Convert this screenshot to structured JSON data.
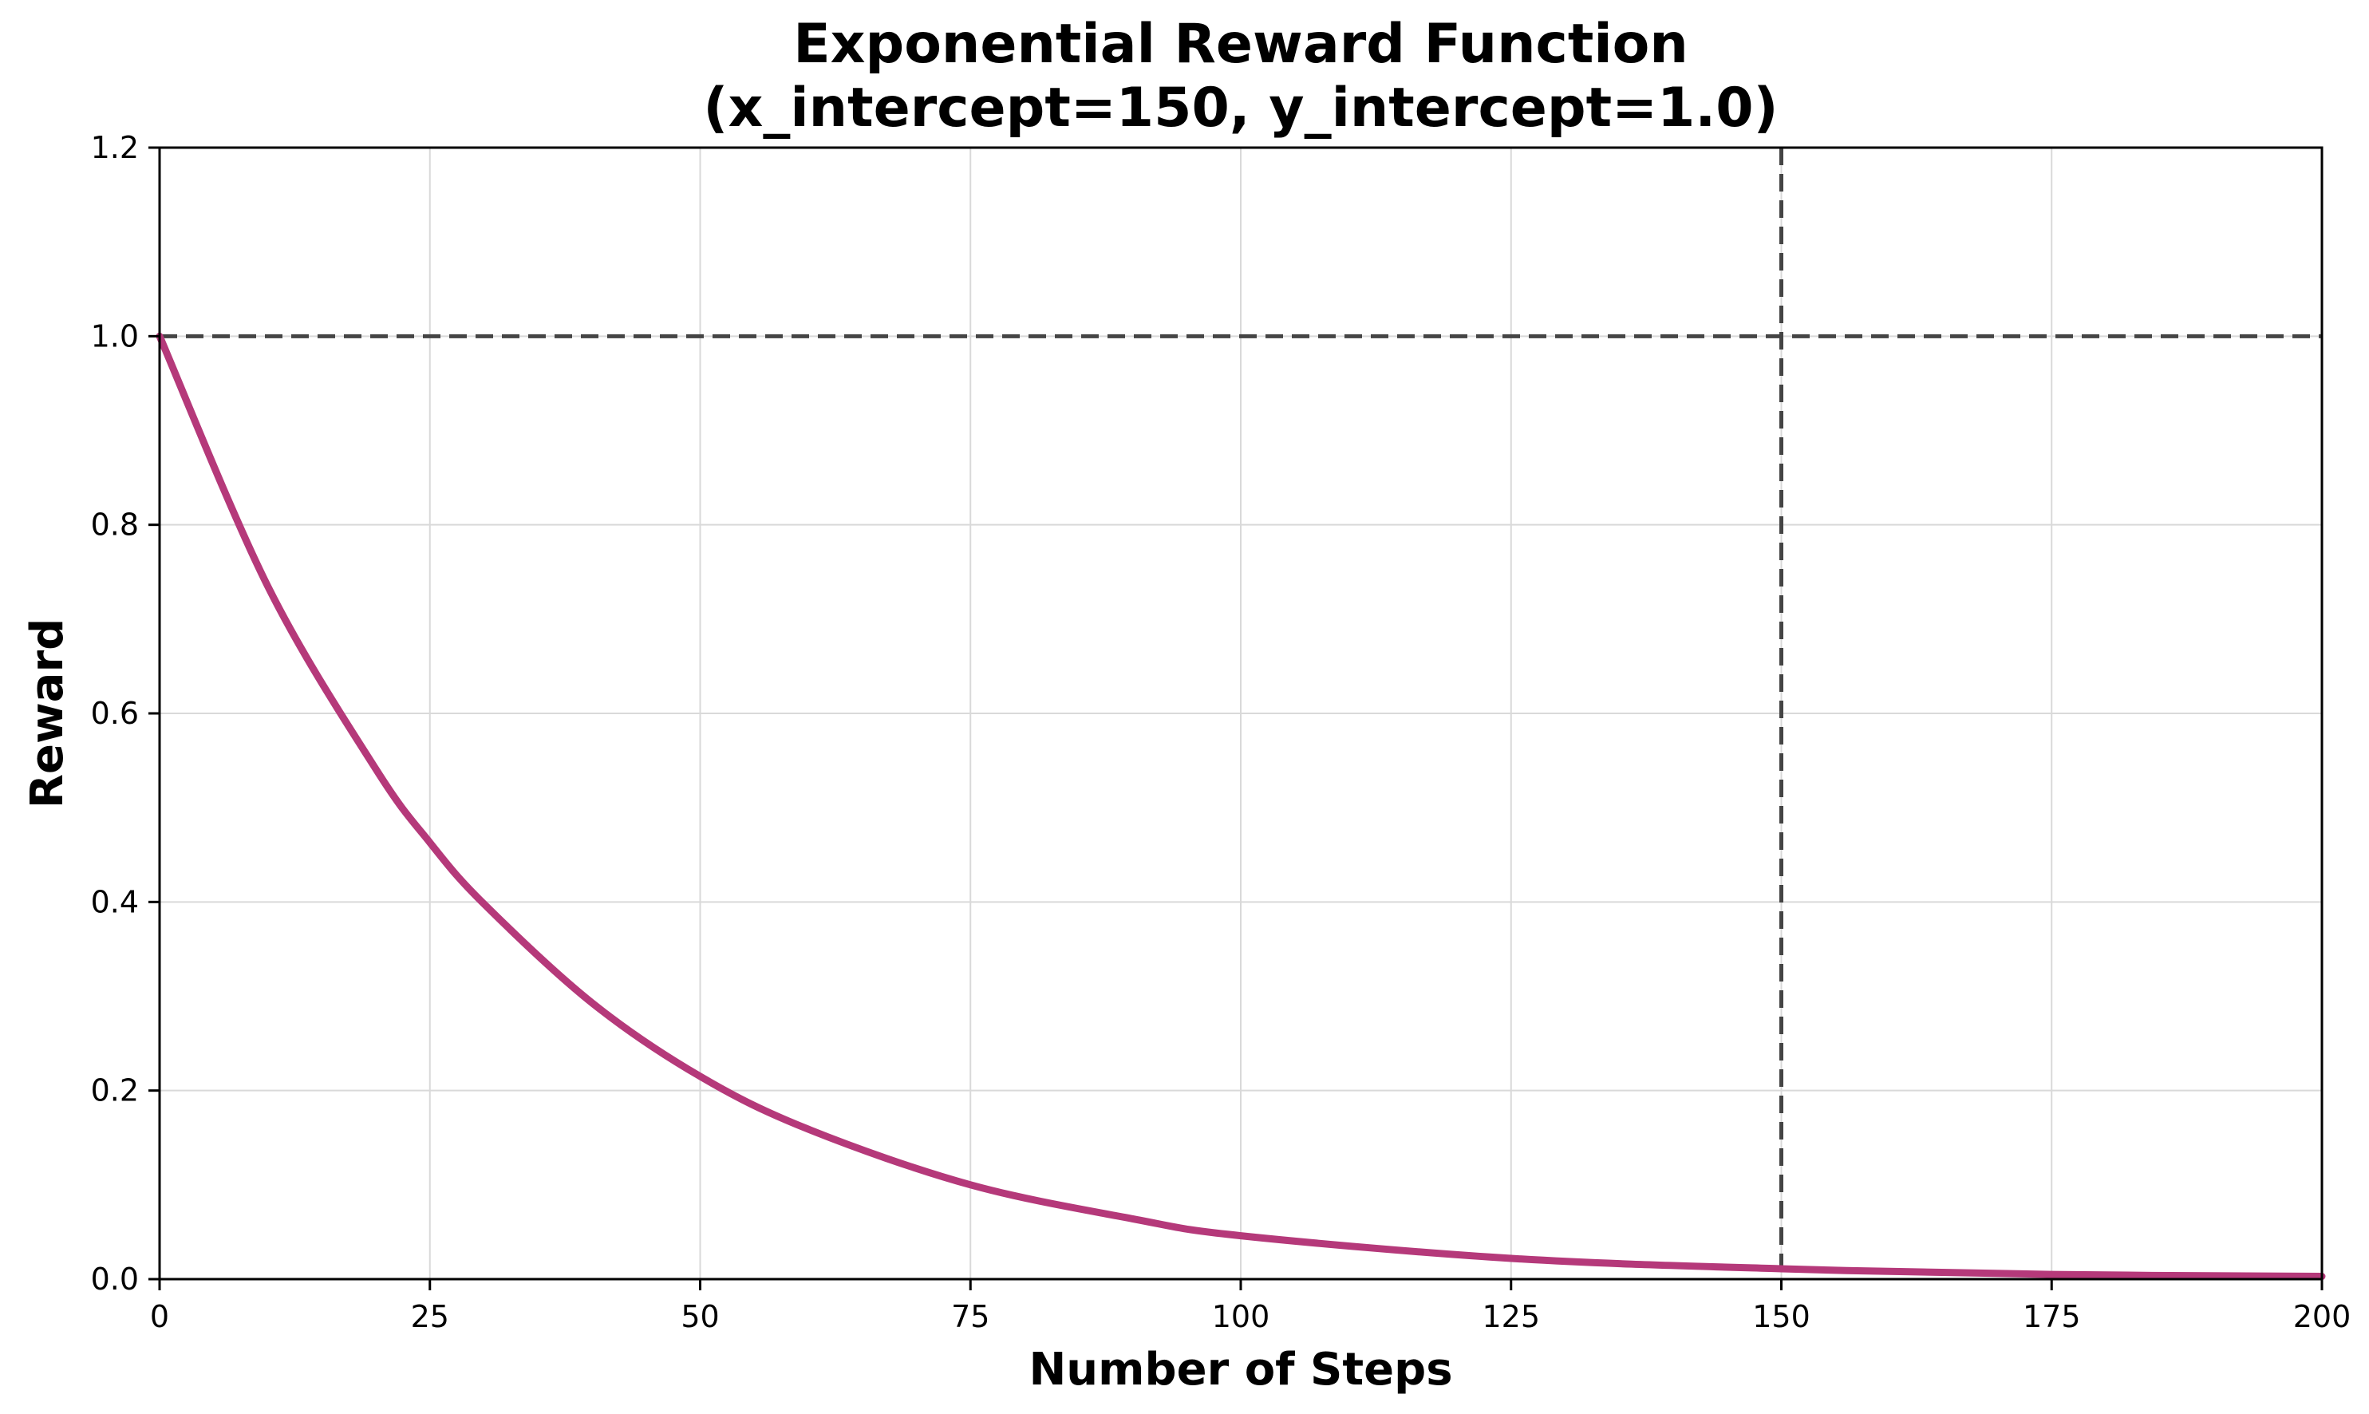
{
  "chart_data": {
    "type": "line",
    "title_line1": "Exponential Reward Function",
    "title_line2": "(x_intercept=150, y_intercept=1.0)",
    "xlabel": "Number of Steps",
    "ylabel": "Reward",
    "xlim": [
      0,
      200
    ],
    "ylim": [
      0,
      1.2
    ],
    "xticks": [
      0,
      25,
      50,
      75,
      100,
      125,
      150,
      175,
      200
    ],
    "yticks": [
      0.0,
      0.2,
      0.4,
      0.6,
      0.8,
      1.0,
      1.2
    ],
    "xtick_labels": [
      "0",
      "25",
      "50",
      "75",
      "100",
      "125",
      "150",
      "175",
      "200"
    ],
    "ytick_labels": [
      "0.0",
      "0.2",
      "0.4",
      "0.6",
      "0.8",
      "1.0",
      "1.2"
    ],
    "grid": true,
    "series": [
      {
        "color": "#b5397a",
        "x": [
          0,
          10,
          20,
          25,
          30,
          40,
          50,
          60,
          75,
          90,
          100,
          125,
          150,
          175,
          200
        ],
        "y": [
          1.0,
          0.735,
          0.541,
          0.463,
          0.398,
          0.293,
          0.215,
          0.159,
          0.1,
          0.064,
          0.046,
          0.022,
          0.011,
          0.005,
          0.003
        ]
      }
    ],
    "reference_lines": {
      "horizontal_y": 1.0,
      "vertical_x": 150,
      "color": "#444444"
    }
  }
}
